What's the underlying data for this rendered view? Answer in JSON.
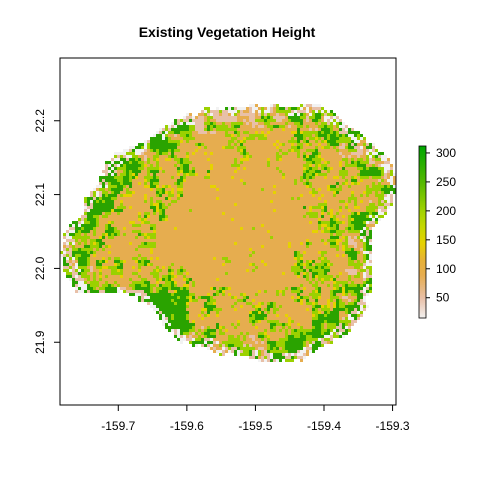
{
  "title": "Existing Vegetation Height",
  "chart_data": {
    "type": "heatmap",
    "title": "Existing Vegetation Height",
    "xlabel": "",
    "ylabel": "",
    "x_ticks": [
      -159.7,
      -159.6,
      -159.5,
      -159.4,
      -159.3
    ],
    "x_tick_labels": [
      "-159.7",
      "-159.6",
      "-159.5",
      "-159.4",
      "-159.3"
    ],
    "y_ticks": [
      21.9,
      22.0,
      22.1,
      22.2
    ],
    "y_tick_labels": [
      "21.9",
      "22.0",
      "22.1",
      "22.2"
    ],
    "xlim": [
      -159.785,
      -159.295
    ],
    "ylim": [
      21.815,
      22.285
    ],
    "legend": {
      "position": "right",
      "ticks": [
        50,
        100,
        150,
        200,
        250,
        300
      ],
      "tick_labels": [
        "50",
        "100",
        "150",
        "200",
        "250",
        "300"
      ],
      "range": [
        15,
        312
      ]
    },
    "colors": {
      "low": "#f2f2f2",
      "pink": "#e8c0a8",
      "tan": "#e6ad4f",
      "yellow": "#e6d200",
      "lightgreen": "#9bd100",
      "green": "#2aa300",
      "darkgreen": "#00a600"
    },
    "grid": false
  }
}
